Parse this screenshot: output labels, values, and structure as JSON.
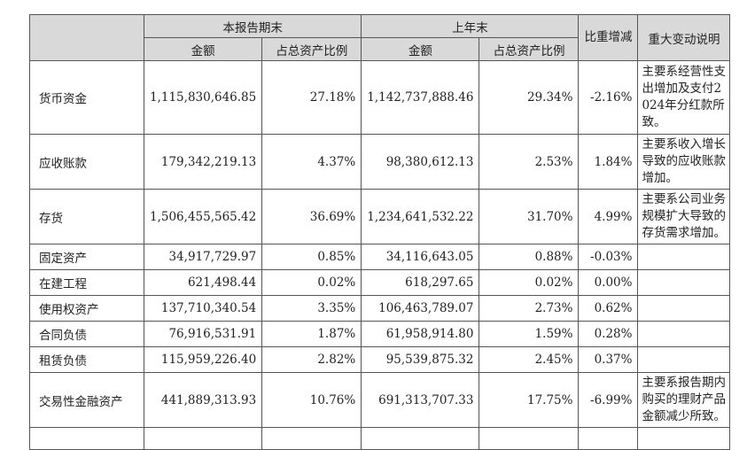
{
  "header": {
    "current_period": "本报告期末",
    "prior_period": "上年末",
    "ratio_change": "比重增减",
    "explanation": "重大变动说明",
    "amount": "金额",
    "ratio_of_total_assets": "占总资产比例"
  },
  "rows": [
    {
      "item": "货币资金",
      "cur_amount": "1,115,830,646.85",
      "cur_ratio": "27.18%",
      "prev_amount": "1,142,737,888.46",
      "prev_ratio": "29.34%",
      "change": "-2.16%",
      "note": "主要系经营性支出增加及支付2024年分红款所致。"
    },
    {
      "item": "应收账款",
      "cur_amount": "179,342,219.13",
      "cur_ratio": "4.37%",
      "prev_amount": "98,380,612.13",
      "prev_ratio": "2.53%",
      "change": "1.84%",
      "note": "主要系收入增长导致的应收账款增加。"
    },
    {
      "item": "存货",
      "cur_amount": "1,506,455,565.42",
      "cur_ratio": "36.69%",
      "prev_amount": "1,234,641,532.22",
      "prev_ratio": "31.70%",
      "change": "4.99%",
      "note": "主要系公司业务规模扩大导致的存货需求增加。"
    },
    {
      "item": "固定资产",
      "cur_amount": "34,917,729.97",
      "cur_ratio": "0.85%",
      "prev_amount": "34,116,643.05",
      "prev_ratio": "0.88%",
      "change": "-0.03%",
      "note": ""
    },
    {
      "item": "在建工程",
      "cur_amount": "621,498.44",
      "cur_ratio": "0.02%",
      "prev_amount": "618,297.65",
      "prev_ratio": "0.02%",
      "change": "0.00%",
      "note": ""
    },
    {
      "item": "使用权资产",
      "cur_amount": "137,710,340.54",
      "cur_ratio": "3.35%",
      "prev_amount": "106,463,789.07",
      "prev_ratio": "2.73%",
      "change": "0.62%",
      "note": ""
    },
    {
      "item": "合同负债",
      "cur_amount": "76,916,531.91",
      "cur_ratio": "1.87%",
      "prev_amount": "61,958,914.80",
      "prev_ratio": "1.59%",
      "change": "0.28%",
      "note": ""
    },
    {
      "item": "租赁负债",
      "cur_amount": "115,959,226.40",
      "cur_ratio": "2.82%",
      "prev_amount": "95,539,875.32",
      "prev_ratio": "2.45%",
      "change": "0.37%",
      "note": ""
    },
    {
      "item": "交易性金融资产",
      "cur_amount": "441,889,313.93",
      "cur_ratio": "10.76%",
      "prev_amount": "691,313,707.33",
      "prev_ratio": "17.75%",
      "change": "-6.99%",
      "note": "主要系报告期内购买的理财产品金额减少所致。"
    }
  ]
}
